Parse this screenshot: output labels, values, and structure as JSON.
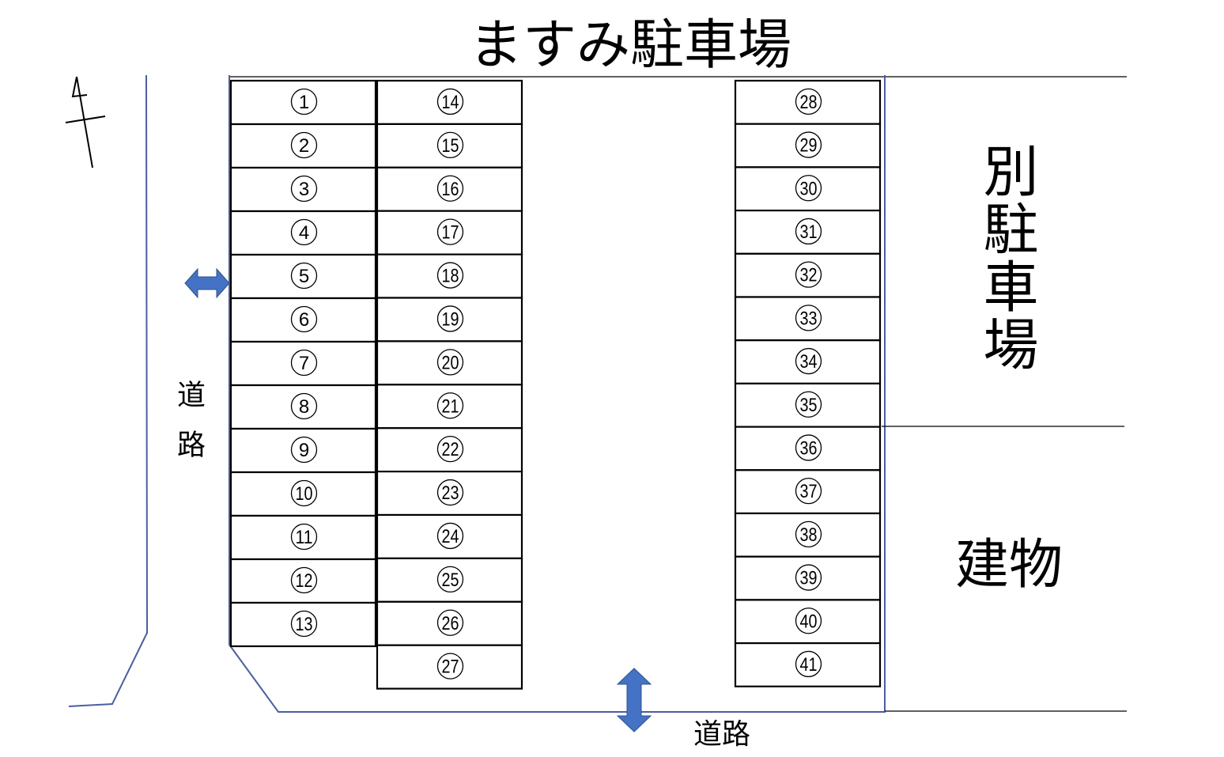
{
  "title": "ますみ駐車場",
  "labels": {
    "other_parking": "別駐車場",
    "building": "建物",
    "road_left": "道路",
    "road_bottom": "道路"
  },
  "colors": {
    "boundary": "#4a5fa0",
    "arrow": "#4472c4",
    "stall_border": "#000000"
  },
  "icons": {
    "north": "north-arrow-icon",
    "entrance_left": "double-arrow-horizontal-icon",
    "entrance_bottom": "double-arrow-vertical-icon"
  },
  "stalls": {
    "column_1": [
      "1",
      "2",
      "3",
      "4",
      "5",
      "6",
      "7",
      "8",
      "9",
      "10",
      "11",
      "12",
      "13"
    ],
    "column_2": [
      "14",
      "15",
      "16",
      "17",
      "18",
      "19",
      "20",
      "21",
      "22",
      "23",
      "24",
      "25",
      "26",
      "27"
    ],
    "column_3": [
      "28",
      "29",
      "30",
      "31",
      "32",
      "33",
      "34",
      "35",
      "36",
      "37",
      "38",
      "39",
      "40",
      "41"
    ]
  }
}
